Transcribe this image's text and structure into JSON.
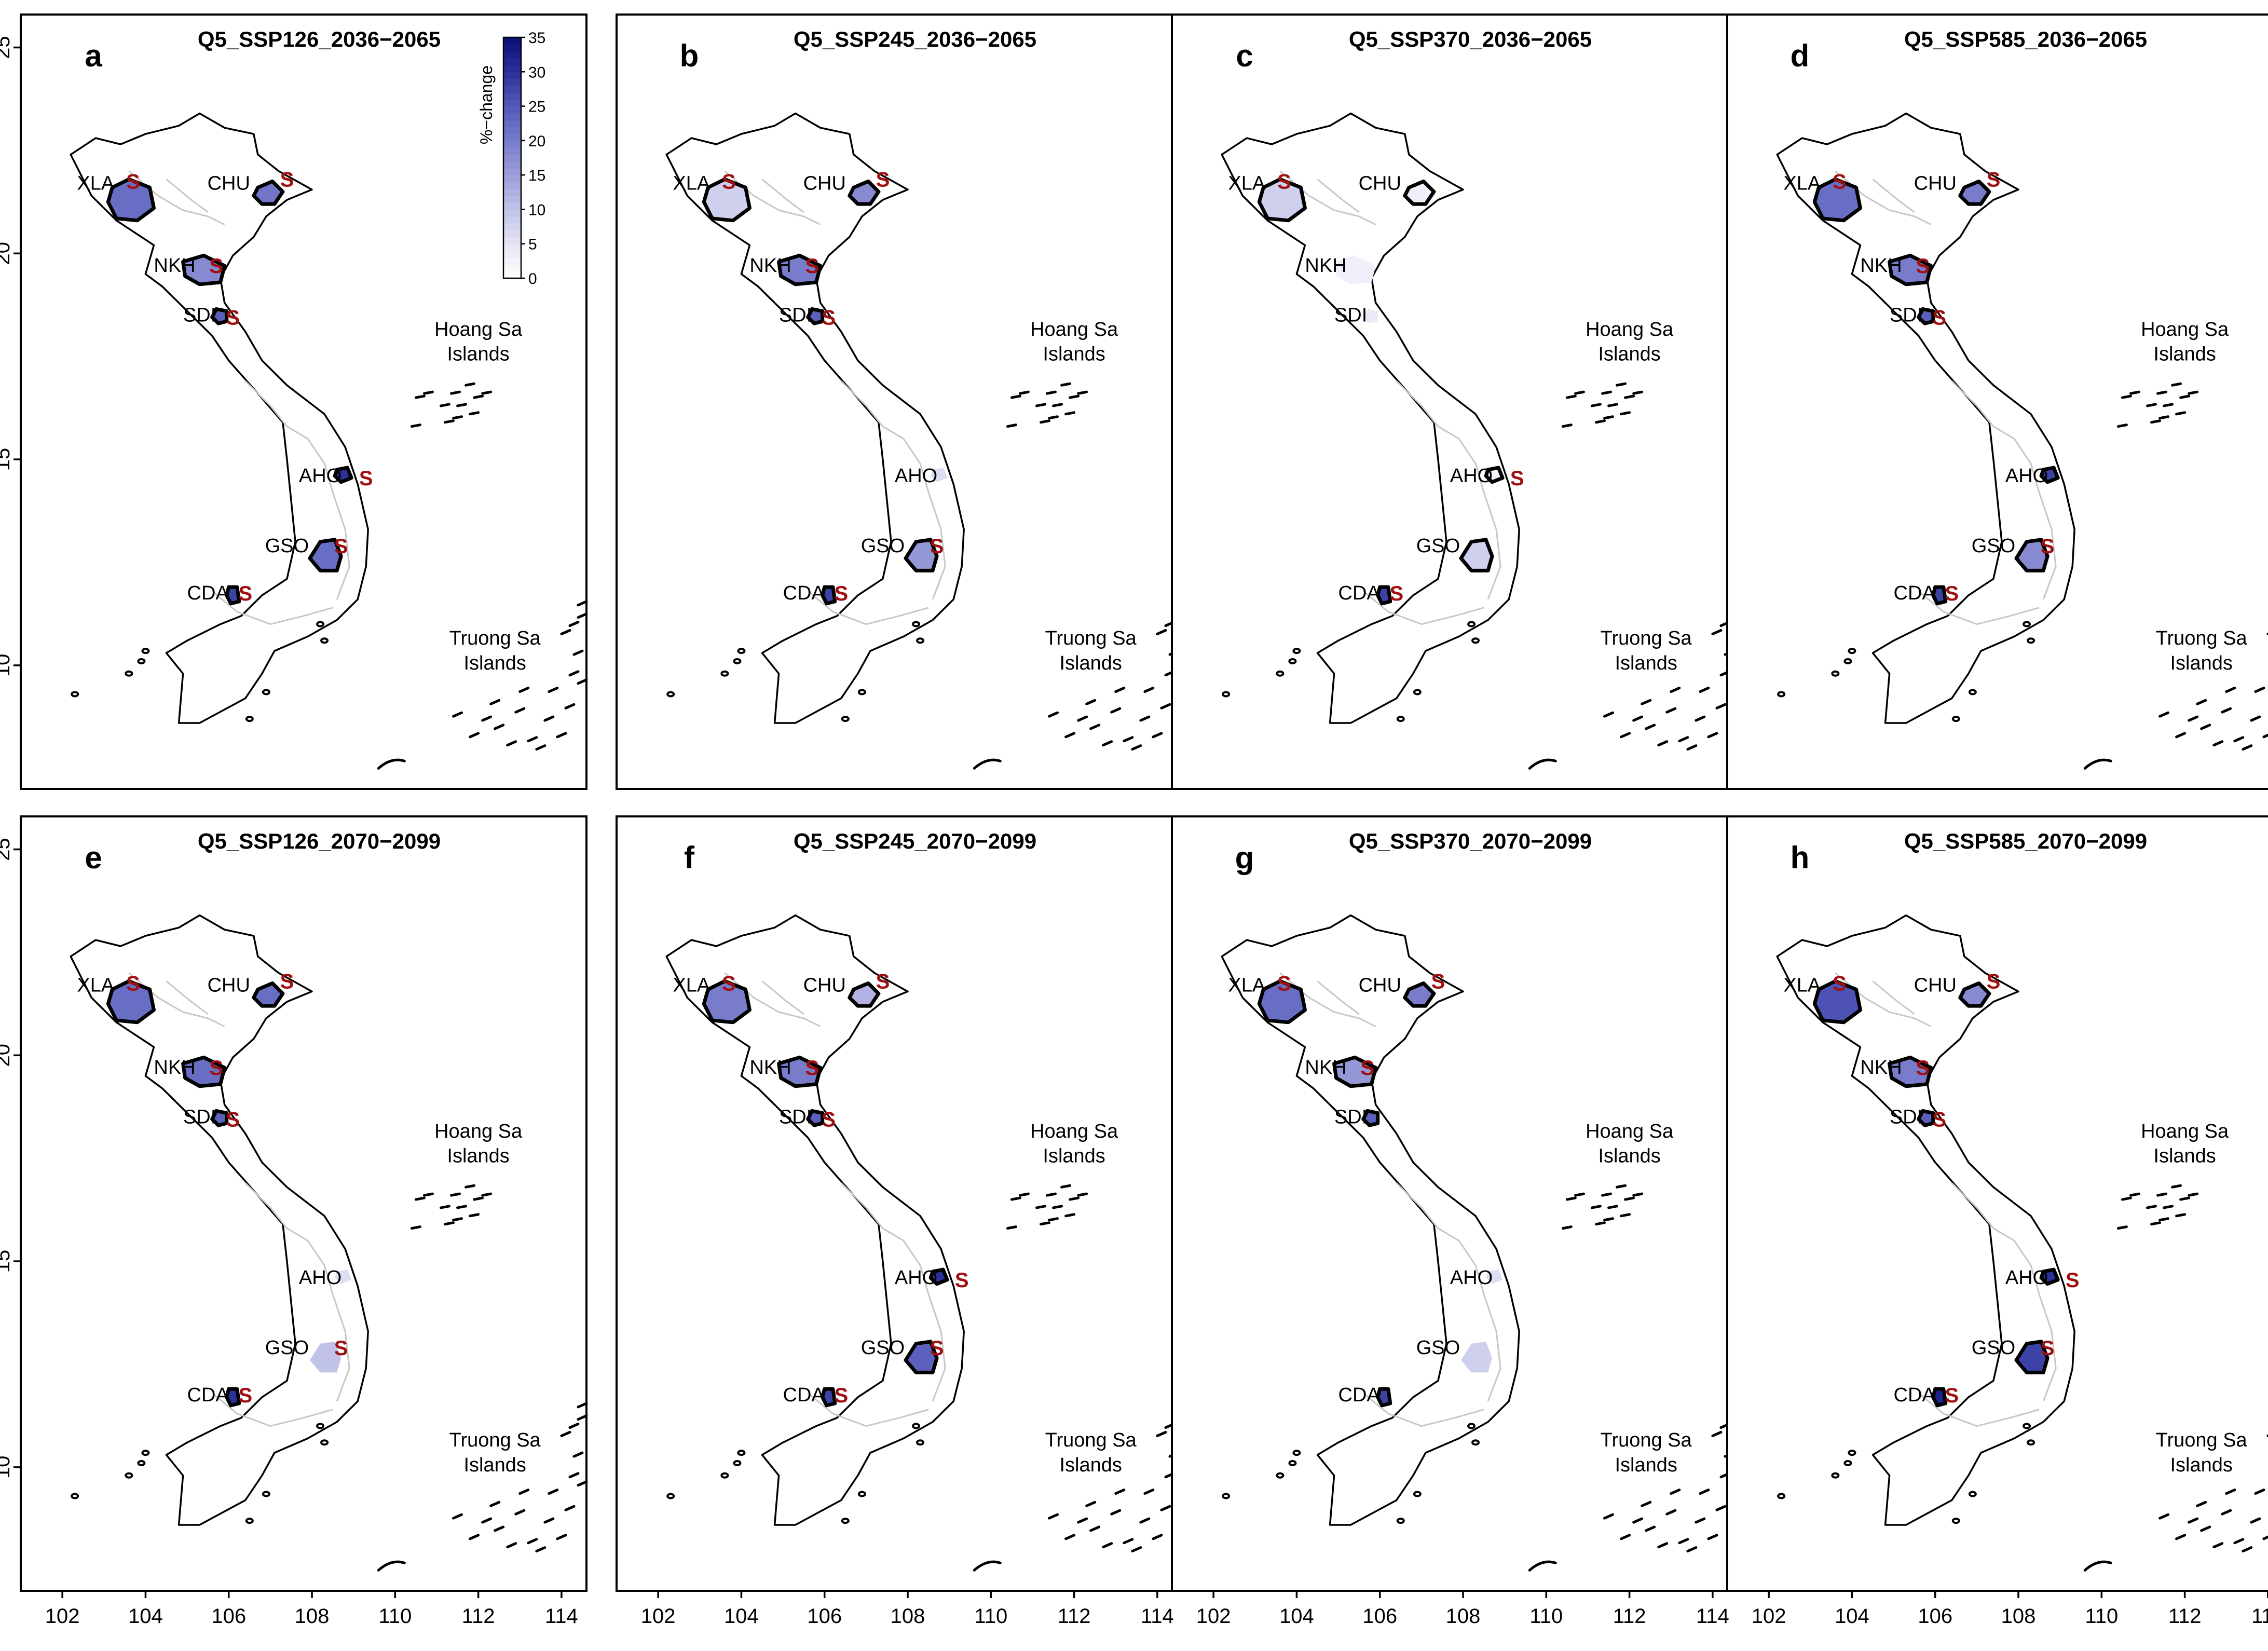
{
  "figure": {
    "panels": [
      {
        "letter": "a",
        "title": "Q5_SSP126_2036−2065",
        "values": {
          "XLA": 22,
          "CHU": 21,
          "NKH": 18,
          "SDI": 24,
          "AHO": 30,
          "GSO": 22,
          "CDA": 28
        },
        "sig": [
          "XLA",
          "CHU",
          "NKH",
          "SDI",
          "AHO",
          "GSO",
          "CDA"
        ],
        "outlined": [
          "XLA",
          "CHU",
          "NKH",
          "SDI",
          "AHO",
          "GSO",
          "CDA"
        ]
      },
      {
        "letter": "b",
        "title": "Q5_SSP245_2036−2065",
        "values": {
          "XLA": 8,
          "CHU": 18,
          "NKH": 20,
          "SDI": 24,
          "AHO": 6,
          "GSO": 16,
          "CDA": 28
        },
        "sig": [
          "XLA",
          "CHU",
          "NKH",
          "SDI",
          "GSO",
          "CDA"
        ],
        "outlined": [
          "XLA",
          "CHU",
          "NKH",
          "SDI",
          "GSO",
          "CDA"
        ]
      },
      {
        "letter": "c",
        "title": "Q5_SSP370_2036−2065",
        "values": {
          "XLA": 8,
          "CHU": 3,
          "NKH": 3,
          "SDI": 4,
          "AHO": 2,
          "GSO": 8,
          "CDA": 28
        },
        "sig": [
          "XLA",
          "AHO",
          "CDA"
        ],
        "outlined": [
          "XLA",
          "CHU",
          "AHO",
          "GSO",
          "CDA"
        ]
      },
      {
        "letter": "d",
        "title": "Q5_SSP585_2036−2065",
        "values": {
          "XLA": 22,
          "CHU": 20,
          "NKH": 20,
          "SDI": 24,
          "AHO": 28,
          "GSO": 18,
          "CDA": 28
        },
        "sig": [
          "XLA",
          "CHU",
          "NKH",
          "SDI",
          "GSO",
          "CDA"
        ],
        "outlined": [
          "XLA",
          "CHU",
          "NKH",
          "SDI",
          "AHO",
          "GSO",
          "CDA"
        ]
      },
      {
        "letter": "e",
        "title": "Q5_SSP126_2070−2099",
        "values": {
          "XLA": 22,
          "CHU": 22,
          "NKH": 22,
          "SDI": 24,
          "AHO": 6,
          "GSO": 10,
          "CDA": 30
        },
        "sig": [
          "XLA",
          "CHU",
          "NKH",
          "SDI",
          "GSO",
          "CDA"
        ],
        "outlined": [
          "XLA",
          "CHU",
          "NKH",
          "SDI",
          "CDA"
        ]
      },
      {
        "letter": "f",
        "title": "Q5_SSP245_2070−2099",
        "values": {
          "XLA": 20,
          "CHU": 12,
          "NKH": 20,
          "SDI": 24,
          "AHO": 30,
          "GSO": 24,
          "CDA": 28
        },
        "sig": [
          "XLA",
          "CHU",
          "NKH",
          "SDI",
          "AHO",
          "GSO",
          "CDA"
        ],
        "outlined": [
          "XLA",
          "CHU",
          "NKH",
          "SDI",
          "AHO",
          "GSO",
          "CDA"
        ]
      },
      {
        "letter": "g",
        "title": "Q5_SSP370_2070−2099",
        "values": {
          "XLA": 22,
          "CHU": 20,
          "NKH": 16,
          "SDI": 24,
          "AHO": 6,
          "GSO": 8,
          "CDA": 28
        },
        "sig": [
          "XLA",
          "CHU",
          "NKH"
        ],
        "outlined": [
          "XLA",
          "CHU",
          "NKH",
          "SDI",
          "CDA"
        ]
      },
      {
        "letter": "h",
        "title": "Q5_SSP585_2070−2099",
        "values": {
          "XLA": 26,
          "CHU": 18,
          "NKH": 20,
          "SDI": 24,
          "AHO": 30,
          "GSO": 28,
          "CDA": 32
        },
        "sig": [
          "XLA",
          "CHU",
          "NKH",
          "SDI",
          "AHO",
          "GSO",
          "CDA"
        ],
        "outlined": [
          "XLA",
          "CHU",
          "NKH",
          "SDI",
          "AHO",
          "GSO",
          "CDA"
        ]
      }
    ],
    "site_labels": [
      "XLA",
      "CHU",
      "NKH",
      "SDI",
      "AHO",
      "GSO",
      "CDA"
    ],
    "significance_symbol": "S",
    "region_labels": {
      "hoang_sa": [
        "Hoang Sa",
        "Islands"
      ],
      "truong_sa": [
        "Truong Sa",
        "Islands"
      ]
    },
    "x_axis": {
      "ticks": [
        102,
        104,
        106,
        108,
        110,
        112,
        114
      ],
      "range": [
        101,
        114.6
      ]
    },
    "y_axis": {
      "ticks": [
        10,
        15,
        20,
        25
      ],
      "range": [
        7,
        25.8
      ]
    },
    "legend": {
      "title": "%−change",
      "ticks": [
        0,
        5,
        10,
        15,
        20,
        25,
        30,
        35
      ],
      "range": [
        0,
        35
      ],
      "colors": [
        "#ffffff",
        "#e8e9f6",
        "#c9cbeb",
        "#a9acdf",
        "#8a8dd2",
        "#6a6fc6",
        "#4b50b3",
        "#272c96",
        "#0a0f78"
      ]
    },
    "colors": {
      "significance": "#a01010",
      "river": "#c7c7c7"
    }
  }
}
